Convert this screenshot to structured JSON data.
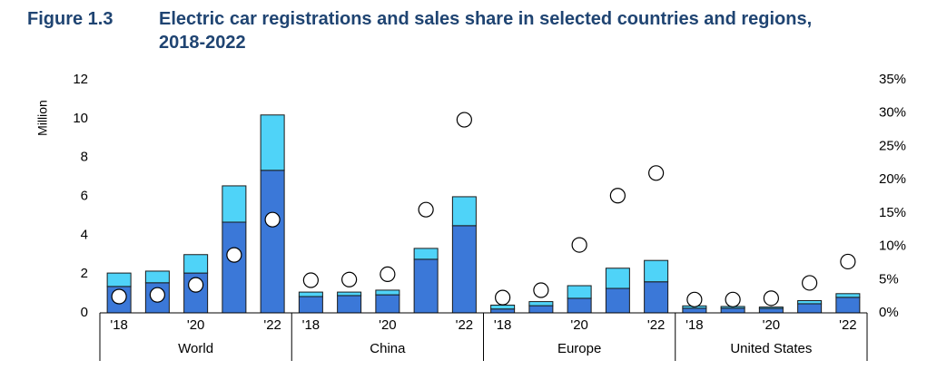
{
  "chart_data": {
    "type": "stacked-bar-scatter",
    "figure_label": "Figure 1.3",
    "title": "Electric car registrations and sales share in selected countries and regions, 2018-2022",
    "ylabel": "Million",
    "groups": [
      "World",
      "China",
      "Europe",
      "United States"
    ],
    "categories": [
      "'18",
      null,
      "'20",
      null,
      "'22",
      "'18",
      null,
      "'20",
      null,
      "'22",
      "'18",
      null,
      "'20",
      null,
      "'22",
      "'18",
      null,
      "'20",
      null,
      "'22"
    ],
    "series": [
      {
        "color": "#3b78d8",
        "values": [
          1.36,
          1.55,
          2.05,
          4.67,
          7.34,
          0.84,
          0.89,
          0.93,
          2.76,
          4.49,
          0.2,
          0.37,
          0.75,
          1.26,
          1.6,
          0.24,
          0.24,
          0.23,
          0.47,
          0.8
        ]
      },
      {
        "color": "#4fd3f8",
        "values": [
          0.69,
          0.6,
          0.95,
          1.87,
          2.85,
          0.23,
          0.18,
          0.24,
          0.56,
          1.49,
          0.2,
          0.21,
          0.65,
          1.04,
          1.1,
          0.12,
          0.09,
          0.07,
          0.16,
          0.19
        ]
      },
      {
        "color": "#ffffff",
        "axis": "y2",
        "values": [
          2.45,
          2.7,
          4.2,
          8.7,
          14.0,
          4.9,
          5.0,
          5.8,
          15.5,
          29.0,
          2.3,
          3.4,
          10.2,
          17.6,
          21.0,
          2.0,
          2.0,
          2.2,
          4.5,
          7.7
        ]
      }
    ],
    "ylim": [
      0,
      12
    ],
    "yticks": [
      0,
      2,
      4,
      6,
      8,
      10,
      12
    ],
    "y2lim": [
      0,
      35
    ],
    "y2ticks": [
      {
        "value": 0,
        "label": "0%"
      },
      {
        "value": 5,
        "label": "5%"
      },
      {
        "value": 10,
        "label": "10%"
      },
      {
        "value": 15,
        "label": "15%"
      },
      {
        "value": 20,
        "label": "20%"
      },
      {
        "value": 25,
        "label": "25%"
      },
      {
        "value": 30,
        "label": "30%"
      },
      {
        "value": 35,
        "label": "35%"
      }
    ]
  }
}
